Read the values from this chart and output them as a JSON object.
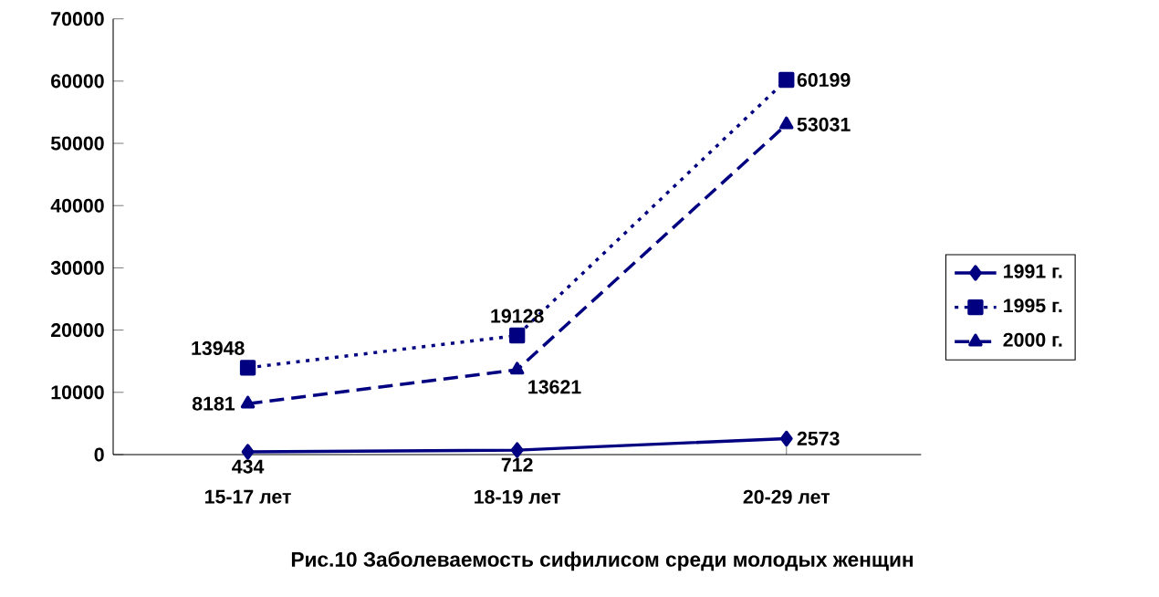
{
  "chart_data": {
    "type": "line",
    "title": "Рис.10 Заболеваемость сифилисом среди молодых женщин",
    "categories": [
      "15-17 лет",
      "18-19 лет",
      "20-29 лет"
    ],
    "series": [
      {
        "name": "1991 г.",
        "color": "#000080",
        "marker": "diamond",
        "line_style": "solid",
        "values": [
          434,
          712,
          2573
        ]
      },
      {
        "name": "1995 г.",
        "color": "#000080",
        "marker": "square",
        "line_style": "dotted",
        "values": [
          13948,
          19128,
          60199
        ]
      },
      {
        "name": "2000 г.",
        "color": "#000080",
        "marker": "triangle",
        "line_style": "dashed",
        "values": [
          8181,
          13621,
          53031
        ]
      }
    ],
    "ylim": [
      0,
      70000
    ],
    "yticks": [
      0,
      10000,
      20000,
      30000,
      40000,
      50000,
      60000,
      70000
    ],
    "data_labels": true,
    "legend": "right",
    "grid": false
  }
}
